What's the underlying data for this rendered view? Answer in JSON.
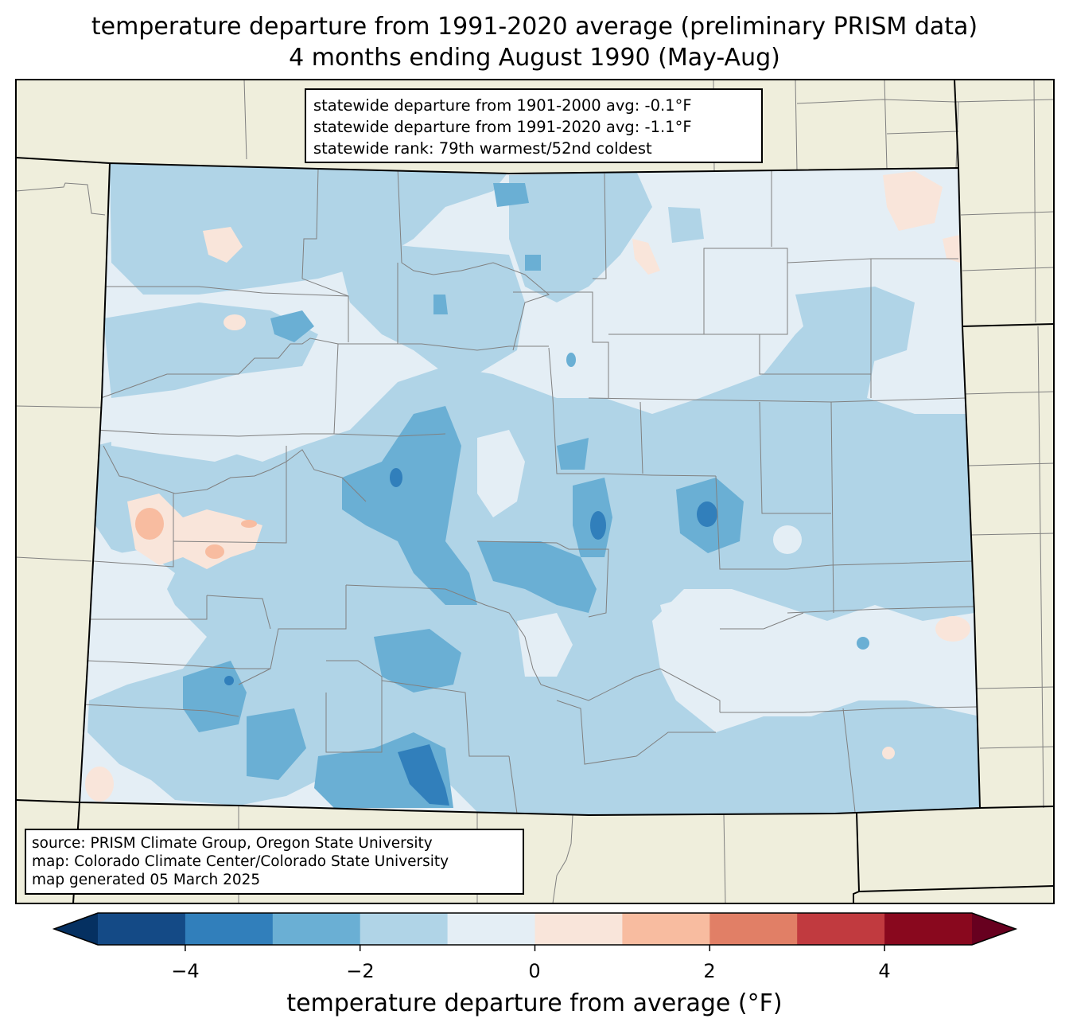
{
  "title_line1": "temperature departure from 1991-2020 average (preliminary PRISM data)",
  "title_line2": "4 months ending August 1990 (May-Aug)",
  "stats": {
    "line1": "statewide departure from 1901-2000 avg: -0.1°F",
    "line2": "statewide departure from 1991-2020 avg: -1.1°F",
    "line3": "statewide rank: 79th warmest/52nd coldest"
  },
  "source": {
    "line1": "source: PRISM Climate Group, Oregon State University",
    "line2": "map: Colorado Climate Center/Colorado State University",
    "line3": "map generated 05 March 2025"
  },
  "colorbar": {
    "label": "temperature departure from average (°F)",
    "ticks": [
      "−4",
      "−2",
      "0",
      "2",
      "4"
    ],
    "bins": [
      {
        "range": "below -5",
        "color": "#053061"
      },
      {
        "range": "-5 to -4",
        "color": "#144a86"
      },
      {
        "range": "-4 to -3",
        "color": "#317fbb"
      },
      {
        "range": "-3 to -2",
        "color": "#6aafd4"
      },
      {
        "range": "-2 to -1",
        "color": "#b0d4e7"
      },
      {
        "range": "-1 to 0",
        "color": "#e4eef5"
      },
      {
        "range": "0 to 1",
        "color": "#f9e5da"
      },
      {
        "range": "1 to 2",
        "color": "#f8bca0"
      },
      {
        "range": "2 to 3",
        "color": "#e17f66"
      },
      {
        "range": "3 to 4",
        "color": "#c13a3f"
      },
      {
        "range": "4 to 5",
        "color": "#89081e"
      },
      {
        "range": "above 5",
        "color": "#67001f"
      }
    ]
  },
  "colors": {
    "land": "#efeedc",
    "state_border": "#000000",
    "county_border": "#808080"
  }
}
